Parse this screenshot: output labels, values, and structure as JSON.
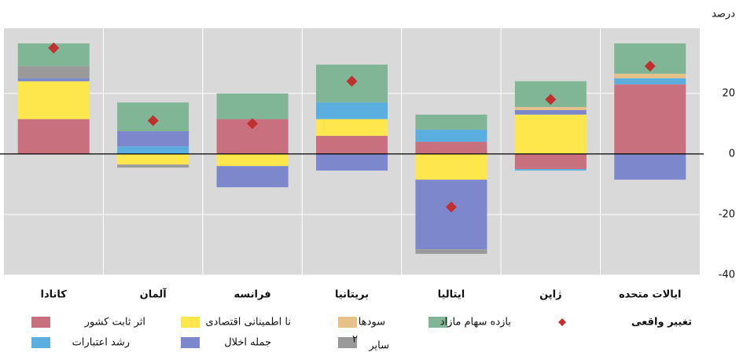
{
  "chart_data": {
    "type": "bar",
    "stacked": true,
    "unit_label": "درصد",
    "categories": [
      "کانادا",
      "آلمان",
      "فرانسه",
      "بریتانیا",
      "ایتالیا",
      "ژاپن",
      "ایالات متحده"
    ],
    "series": [
      {
        "name": "اثر ثابت کشور",
        "color": "#c9707f",
        "values": [
          11.5,
          0,
          11.5,
          6,
          4,
          -5,
          23
        ]
      },
      {
        "name": "نا اطمینانی اقتصادی",
        "color": "#fde74c",
        "values": [
          12.5,
          -3.5,
          -4,
          5.5,
          -8.5,
          13,
          0
        ]
      },
      {
        "name": "رشد اعتبارات",
        "color": "#5aaee0",
        "values": [
          0,
          2.5,
          0,
          5.5,
          4,
          -0.5,
          2
        ]
      },
      {
        "name": "جمله اخلال",
        "color": "#7d88cc",
        "values": [
          1,
          5,
          -7,
          -5.5,
          -23,
          1.5,
          -8.5
        ]
      },
      {
        "name": "سودها",
        "color": "#e8c08a",
        "values": [
          0,
          0,
          0,
          0,
          0,
          1,
          1.5
        ]
      },
      {
        "name": "سایر",
        "color": "#9a9a9a",
        "values": [
          4,
          -1,
          0,
          0,
          -1.5,
          0,
          0
        ]
      },
      {
        "name": "بازده سهام مازاد",
        "color": "#80b596",
        "values": [
          7.5,
          9.5,
          8.5,
          12.5,
          5,
          8.5,
          10
        ]
      }
    ],
    "actual": {
      "name": "تغییر واقعی",
      "color": "#c0302f",
      "values": [
        35,
        11,
        10,
        24,
        -17.5,
        18,
        29
      ]
    },
    "legend_note": "۲",
    "ylim": [
      -40,
      41.5
    ],
    "yticks": [
      20,
      0,
      -20,
      -40
    ],
    "grid": true
  }
}
